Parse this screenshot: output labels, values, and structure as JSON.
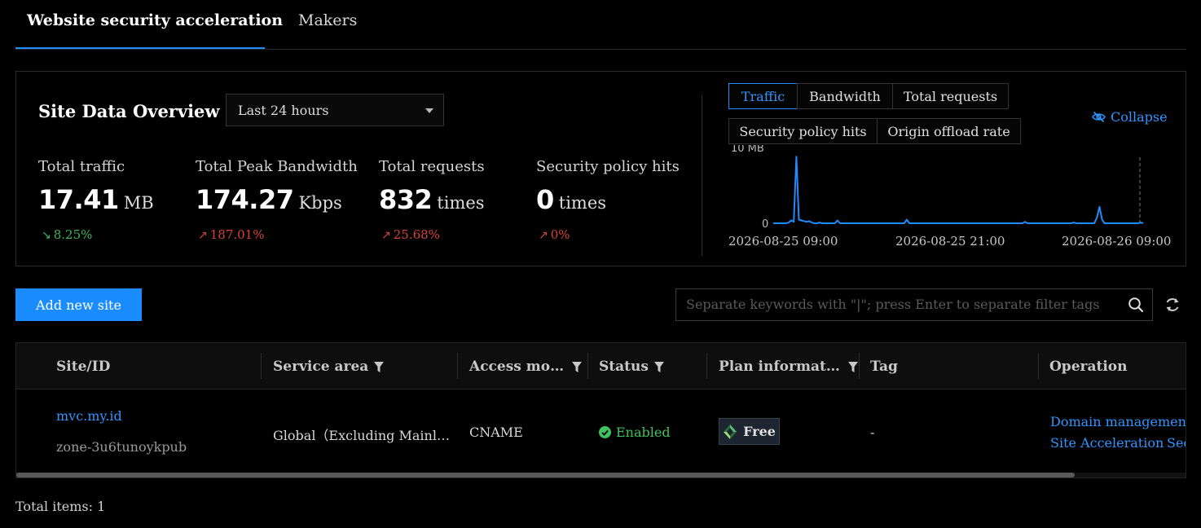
{
  "tabs": [
    {
      "label": "Website security acceleration",
      "active": true
    },
    {
      "label": "Makers",
      "active": false
    }
  ],
  "overview": {
    "title": "Site Data Overview",
    "time_range": "Last 24 hours",
    "metrics": [
      {
        "label": "Total traffic",
        "value": "17.41",
        "unit": "MB",
        "change": "8.25%",
        "direction": "down"
      },
      {
        "label": "Total Peak Bandwidth",
        "value": "174.27",
        "unit": "Kbps",
        "change": "187.01%",
        "direction": "up"
      },
      {
        "label": "Total requests",
        "value": "832",
        "unit": "times",
        "change": "25.68%",
        "direction": "up"
      },
      {
        "label": "Security policy hits",
        "value": "0",
        "unit": "times",
        "change": "0%",
        "direction": "up"
      }
    ],
    "chart_tabs": [
      "Traffic",
      "Bandwidth",
      "Total requests",
      "Security policy hits",
      "Origin offload rate"
    ],
    "active_chart_tab": "Traffic",
    "collapse_label": "Collapse"
  },
  "chart_data": {
    "type": "line",
    "series": [
      {
        "values": [
          0,
          0,
          0,
          0,
          0,
          0,
          0.1,
          0.4,
          0.2,
          9.3,
          0.5,
          0.4,
          0.3,
          0.2,
          0.3,
          0.1,
          0,
          0,
          0.1,
          0,
          0,
          0,
          0,
          0,
          0,
          0.4,
          0,
          0,
          0,
          0,
          0,
          0,
          0,
          0,
          0,
          0,
          0,
          0,
          0,
          0,
          0,
          0,
          0,
          0,
          0,
          0,
          0,
          0,
          0,
          0,
          0,
          0,
          0.5,
          0,
          0,
          0,
          0,
          0,
          0,
          0,
          0,
          0,
          0,
          0,
          0,
          0,
          0,
          0,
          0,
          0,
          0,
          0,
          0,
          0,
          0,
          0,
          0,
          0,
          0,
          0,
          0,
          0,
          0,
          0,
          0,
          0,
          0,
          0,
          0,
          0,
          0,
          0,
          0,
          0,
          0,
          0,
          0,
          0,
          0.2,
          0,
          0,
          0,
          0,
          0,
          0,
          0,
          0,
          0,
          0,
          0,
          0,
          0,
          0,
          0,
          0,
          0,
          0,
          0.1,
          0,
          0,
          0,
          0,
          0,
          0,
          0,
          0,
          0.8,
          2.3,
          0.5,
          0,
          0,
          0,
          0,
          0,
          0,
          0,
          0,
          0,
          0,
          0,
          0,
          0,
          0,
          0.1,
          0
        ]
      }
    ],
    "ylim": [
      0,
      10
    ],
    "y_ticks": [
      "10 MB",
      "0"
    ],
    "x_ticks": [
      "2026-08-25 09:00",
      "2026-08-25 21:00",
      "2026-08-26 09:00"
    ],
    "color": "#1f8bff"
  },
  "toolbar": {
    "add_label": "Add new site",
    "search_placeholder": "Separate keywords with \"|\"; press Enter to separate filter tags"
  },
  "table": {
    "headers": [
      "Site/ID",
      "Service area",
      "Access mo…",
      "Status",
      "Plan informat…",
      "Tag",
      "Operation"
    ],
    "rows": [
      {
        "site": "mvc.my.id",
        "zone": "zone-3u6tunoykpub",
        "service_area": "Global（Excluding Mainl…",
        "access_mode": "CNAME",
        "status": "Enabled",
        "plan": "Free",
        "tag": "-",
        "operations": [
          "Domain management",
          "Site Acceleration",
          "Sec"
        ]
      }
    ]
  },
  "footer": {
    "total_label": "Total items: 1"
  }
}
